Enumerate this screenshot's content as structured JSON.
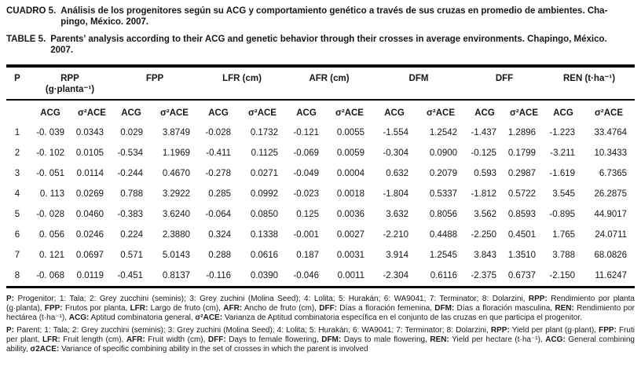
{
  "captions": {
    "es_label": "CUADRO 5.",
    "es_lines": [
      "Análisis de los progenitores según su ACG y comportamiento genético a través de sus cruzas en promedio de ambientes. Cha-",
      "pingo, México. 2007."
    ],
    "en_label": "TABLE 5.",
    "en_lines": [
      "Parents' analysis according to their ACG and genetic behavior through their crosses in average environments. Chapingo, México.",
      "2007."
    ]
  },
  "table": {
    "p_header": "P",
    "groups": [
      {
        "label": "RPP",
        "unit": "(g·planta⁻¹)",
        "sub": [
          "ACG",
          "σ²ACE"
        ]
      },
      {
        "label": "FPP",
        "sub": [
          "ACG",
          "σ²ACE"
        ]
      },
      {
        "label": "LFR (cm)",
        "sub": [
          "ACG",
          "σ²ACE"
        ]
      },
      {
        "label": "AFR (cm)",
        "sub": [
          "ACG",
          "σ²ACE"
        ]
      },
      {
        "label": "DFM",
        "sub": [
          "ACG",
          "σ²ACE"
        ]
      },
      {
        "label": "DFF",
        "sub": [
          "ACG",
          "σ²ACE"
        ]
      },
      {
        "label": "REN (t·ha⁻¹)",
        "sub": [
          "ACG",
          "σ²ACE"
        ]
      }
    ],
    "rows": [
      [
        "1",
        "-0. 039",
        "0.0343",
        "0.029",
        "3.8749",
        "-0.028",
        "0.1732",
        "-0.121",
        "0.0055",
        "-1.554",
        "1.2542",
        "-1.437",
        "1.2896",
        "-1.223",
        "33.4764"
      ],
      [
        "2",
        "-0. 102",
        "0.0105",
        "-0.534",
        "1.1969",
        "-0.411",
        "0.1125",
        "-0.069",
        "0.0059",
        "-0.304",
        "0.0900",
        "-0.125",
        "0.1799",
        "-3.211",
        "10.3433"
      ],
      [
        "3",
        "-0. 051",
        "0.0114",
        "-0.244",
        "0.4670",
        "-0.278",
        "0.0271",
        "-0.049",
        "0.0004",
        "0.632",
        "0.2079",
        "0.593",
        "0.2987",
        "-1.619",
        "6.7365"
      ],
      [
        "4",
        "0. 113",
        "0.0269",
        "0.788",
        "3.2922",
        "0.285",
        "0.0992",
        "-0.023",
        "0.0018",
        "-1.804",
        "0.5337",
        "-1.812",
        "0.5722",
        "3.545",
        "26.2875"
      ],
      [
        "5",
        "-0. 028",
        "0.0460",
        "-0.383",
        "3.6240",
        "-0.064",
        "0.0850",
        "0.125",
        "0.0036",
        "3.632",
        "0.8056",
        "3.562",
        "0.8593",
        "-0.895",
        "44.9017"
      ],
      [
        "6",
        "0. 056",
        "0.0246",
        "0.224",
        "2.3880",
        "0.324",
        "0.1338",
        "-0.001",
        "0.0027",
        "-2.210",
        "0.4488",
        "-2.250",
        "0.4501",
        "1.765",
        "24.0711"
      ],
      [
        "7",
        "0. 121",
        "0.0697",
        "0.571",
        "5.0143",
        "0.288",
        "0.0616",
        "0.187",
        "0.0031",
        "3.914",
        "1.2545",
        "3.843",
        "1.3510",
        "3.788",
        "68.0826"
      ],
      [
        "8",
        "-0. 068",
        "0.0119",
        "-0.451",
        "0.8137",
        "-0.116",
        "0.0390",
        "-0.046",
        "0.0011",
        "-2.304",
        "0.6116",
        "-2.375",
        "0.6737",
        "-2.150",
        "11.6247"
      ]
    ]
  },
  "footnotes": {
    "es": [
      {
        "b": "P:",
        "t": " Progenitor; 1: Tala; 2: Grey zucchini (seminis); 3: Grey zuchini (Molina Seed); 4: Lolita; 5: Hurakán; 6: WA9041; 7: Terminator; 8: Dolarzini, "
      },
      {
        "b": "RPP:",
        "t": " Rendimiento por planta (g·planta), "
      },
      {
        "b": "FPP:",
        "t": " Frutos por planta, "
      },
      {
        "b": "LFR:",
        "t": " Largo de fruto (cm), "
      },
      {
        "b": "AFR:",
        "t": " Ancho de fruto (cm), "
      },
      {
        "b": "DFF:",
        "t": " Días a floración femenina, "
      },
      {
        "b": "DFM:",
        "t": " Días a floración masculina, "
      },
      {
        "b": "REN:",
        "t": " Rendimiento por hectárea (t·ha⁻¹), "
      },
      {
        "b": "ACG:",
        "t": " Aptitud combinatoria general, "
      },
      {
        "b": "σ²ACE:",
        "t": " Varianza de Aptitud combinatoria específica en el conjunto de las cruzas en que participa el progenitor."
      }
    ],
    "en": [
      {
        "b": "P:",
        "t": " Parent; 1: Tala; 2: Grey zucchini (seminis); 3: Grey zuchini (Molina Seed); 4: Lolita; 5: Hurakán; 6: WA9041; 7: Terminator; 8: Dolarzini, "
      },
      {
        "b": "RPP:",
        "t": " Yield per plant (g·plant), "
      },
      {
        "b": "FPP:",
        "t": " Fruti per plant, "
      },
      {
        "b": "LFR:",
        "t": " Fruit length (cm), "
      },
      {
        "b": "AFR:",
        "t": " Fruit width (cm), "
      },
      {
        "b": "DFF:",
        "t": " Days to female flowering, "
      },
      {
        "b": "DFM:",
        "t": " Days to male flowering, "
      },
      {
        "b": "REN:",
        "t": " Yield per hectare (t·ha⁻¹), "
      },
      {
        "b": "ACG:",
        "t": " General combining ability, "
      },
      {
        "b": "σ2ACE:",
        "t": " Variance of specific combining ability in the set of crosses in which the parent is involved"
      }
    ]
  }
}
